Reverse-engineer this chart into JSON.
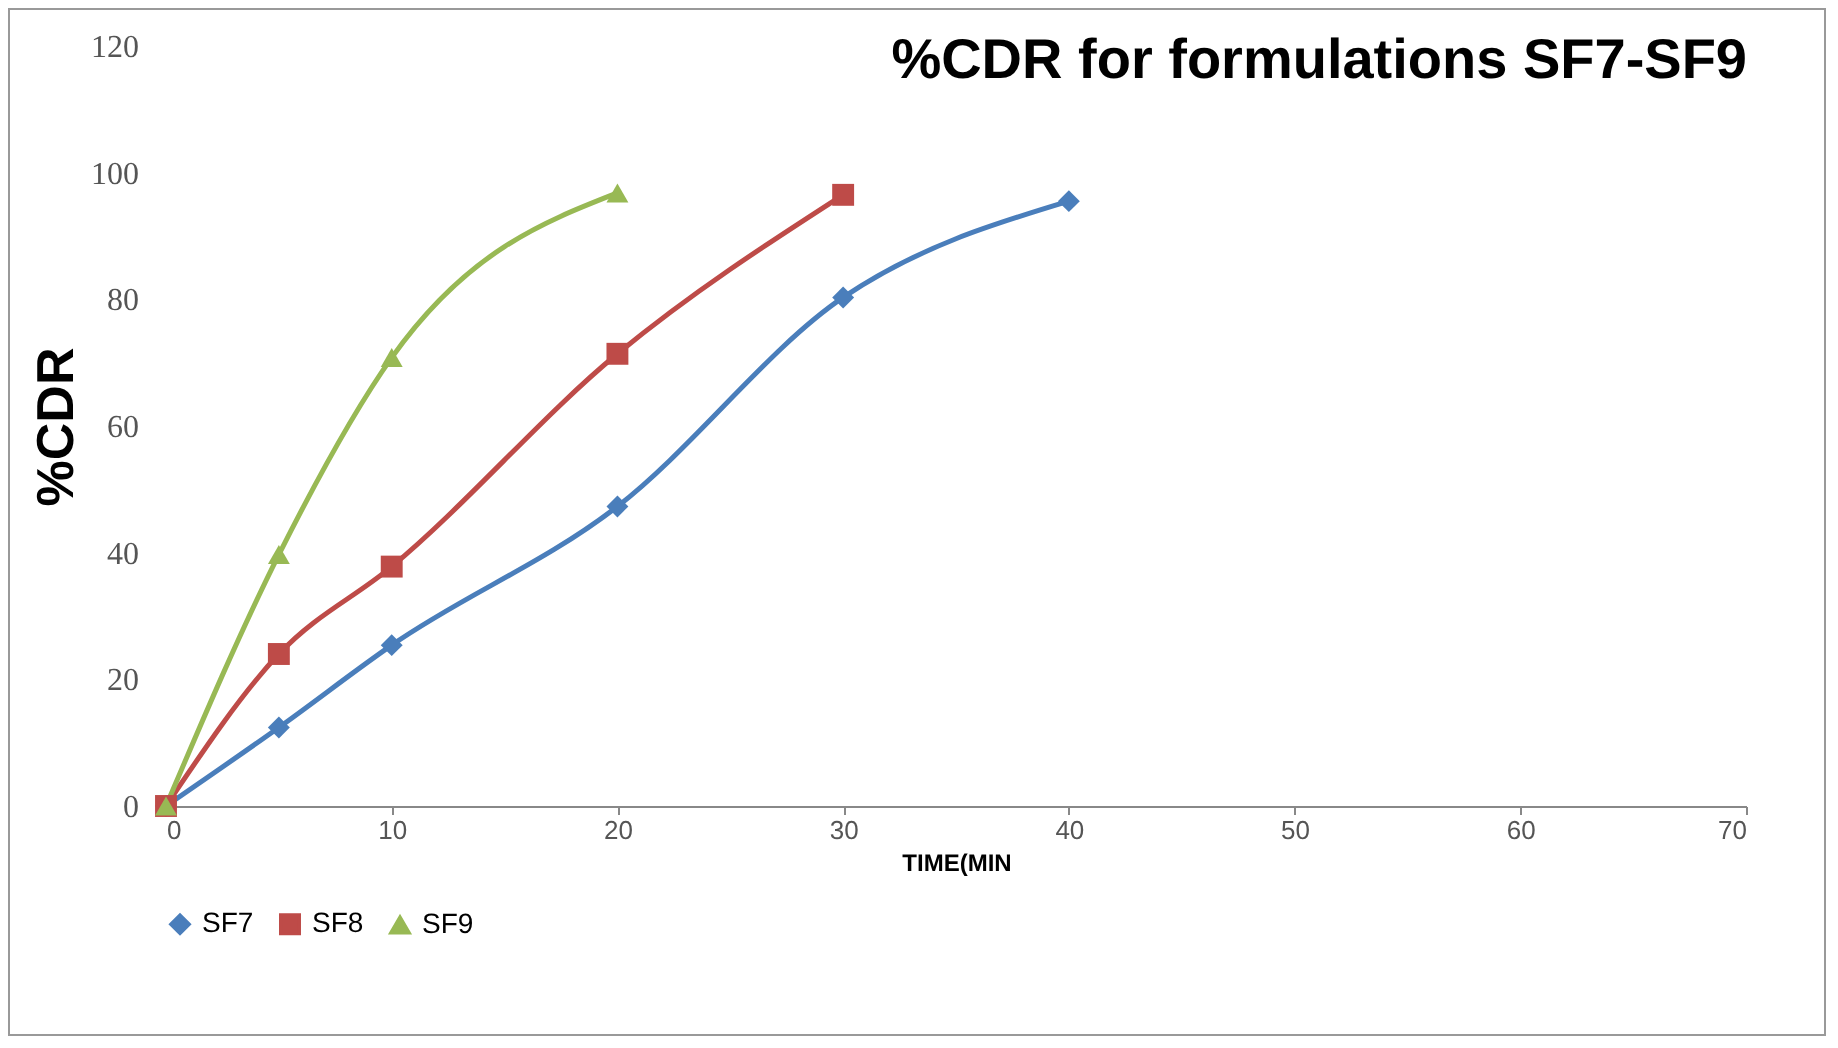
{
  "chart_data": {
    "type": "line",
    "title": "%CDR for formulations SF7-SF9",
    "xlabel": "TIME(MIN",
    "ylabel": "%CDR",
    "x": [
      0,
      5,
      10,
      20,
      30,
      40
    ],
    "series": [
      {
        "name": "SF7",
        "color": "#4a7ebb",
        "marker": "diamond",
        "values": [
          0,
          12.4,
          25.4,
          47.3,
          80.3,
          95.5
        ]
      },
      {
        "name": "SF8",
        "color": "#be4b48",
        "marker": "square",
        "x": [
          0,
          5,
          10,
          20,
          30
        ],
        "values": [
          0,
          24,
          37.8,
          71.4,
          96.5
        ]
      },
      {
        "name": "SF9",
        "color": "#98b954",
        "marker": "triangle",
        "x": [
          0,
          5,
          10,
          20
        ],
        "values": [
          0,
          39.7,
          70.8,
          96.8
        ]
      }
    ],
    "xlim": [
      0,
      70
    ],
    "xticks": [
      0,
      10,
      20,
      30,
      40,
      50,
      60,
      70
    ],
    "ylim": [
      0,
      120
    ],
    "yticks": [
      0,
      20,
      40,
      60,
      80,
      100,
      120
    ],
    "grid": false,
    "legend": "bottom"
  }
}
